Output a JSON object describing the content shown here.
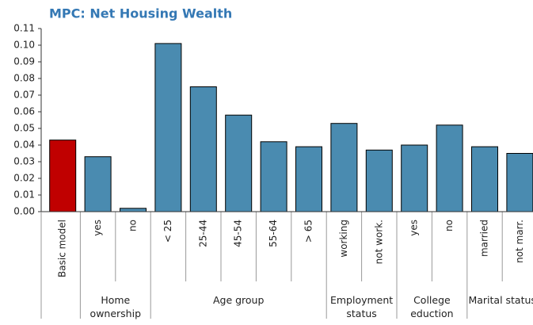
{
  "chart_data": {
    "type": "bar",
    "title": "MPC: Net Housing Wealth",
    "ylim": [
      0,
      0.11
    ],
    "yticks": [
      {
        "value": 0,
        "label": "0.00"
      },
      {
        "value": 0.01,
        "label": "0.01"
      },
      {
        "value": 0.02,
        "label": "0.02"
      },
      {
        "value": 0.03,
        "label": "0.03"
      },
      {
        "value": 0.04,
        "label": "0.04"
      },
      {
        "value": 0.05,
        "label": "0.05"
      },
      {
        "value": 0.06,
        "label": "0.06"
      },
      {
        "value": 0.07,
        "label": "0.07"
      },
      {
        "value": 0.08,
        "label": "0.08"
      },
      {
        "value": 0.09,
        "label": "0.09"
      },
      {
        "value": 0.1,
        "label": "0.10"
      },
      {
        "value": 0.11,
        "label": "0.11"
      }
    ],
    "groups": [
      {
        "label": null,
        "color": "#c00000",
        "categories": [
          "Basic model"
        ],
        "values": [
          0.043
        ]
      },
      {
        "label": "Home ownership",
        "color": "#4a8bb0",
        "categories": [
          "yes",
          "no"
        ],
        "values": [
          0.033,
          0.002
        ]
      },
      {
        "label": "Age group",
        "color": "#4a8bb0",
        "categories": [
          "< 25",
          "25-44",
          "45-54",
          "55-64",
          "> 65"
        ],
        "values": [
          0.101,
          0.075,
          0.058,
          0.042,
          0.039
        ]
      },
      {
        "label": "Employment status",
        "color": "#4a8bb0",
        "categories": [
          "working",
          "not work."
        ],
        "values": [
          0.053,
          0.037
        ]
      },
      {
        "label": "College eduction",
        "color": "#4a8bb0",
        "categories": [
          "yes",
          "no"
        ],
        "values": [
          0.04,
          0.052
        ]
      },
      {
        "label": "Marital status",
        "color": "#4a8bb0",
        "categories": [
          "married",
          "not marr."
        ],
        "values": [
          0.039,
          0.035
        ]
      }
    ]
  }
}
